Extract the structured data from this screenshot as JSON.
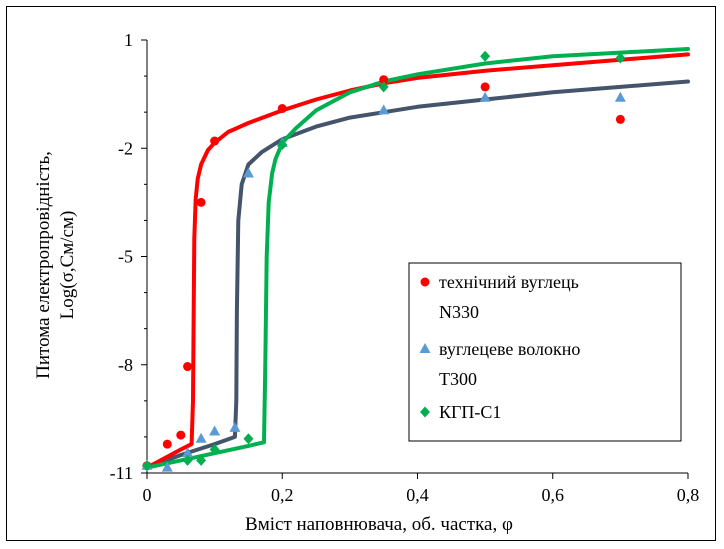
{
  "chart_data": {
    "type": "scatter",
    "title": "",
    "xlabel": "Вміст наповнювача, об. частка, φ",
    "ylabel_line1": "Питома електропровідність,",
    "ylabel_line2": "Log(σ,См/см)",
    "xlim": [
      0,
      0.8
    ],
    "ylim": [
      -11,
      1
    ],
    "x_ticks": [
      0,
      0.2,
      0.4,
      0.6,
      0.8
    ],
    "x_tick_labels": [
      "0",
      "0,2",
      "0,4",
      "0,6",
      "0,8"
    ],
    "y_ticks": [
      1,
      -2,
      -5,
      -8,
      -11
    ],
    "y_tick_labels": [
      "1",
      "-2",
      "-5",
      "-8",
      "-11"
    ],
    "grid": false,
    "legend_position": "center-right",
    "series": [
      {
        "name_line1": "технічний вуглець",
        "name_line2": "N330",
        "color": "#ff0000",
        "marker": "circle",
        "points": [
          [
            0,
            -10.8
          ],
          [
            0.03,
            -10.2
          ],
          [
            0.05,
            -9.95
          ],
          [
            0.06,
            -8.05
          ],
          [
            0.08,
            -3.5
          ],
          [
            0.1,
            -1.8
          ],
          [
            0.2,
            -0.9
          ],
          [
            0.35,
            -0.1
          ],
          [
            0.5,
            -0.3
          ],
          [
            0.7,
            -1.2
          ]
        ],
        "curve": [
          [
            0,
            -10.85
          ],
          [
            0.03,
            -10.55
          ],
          [
            0.05,
            -10.35
          ],
          [
            0.066,
            -10.2
          ],
          [
            0.068,
            -9.0
          ],
          [
            0.069,
            -6.5
          ],
          [
            0.07,
            -4.5
          ],
          [
            0.072,
            -3.4
          ],
          [
            0.075,
            -2.85
          ],
          [
            0.08,
            -2.45
          ],
          [
            0.09,
            -2.05
          ],
          [
            0.1,
            -1.85
          ],
          [
            0.12,
            -1.55
          ],
          [
            0.15,
            -1.3
          ],
          [
            0.2,
            -0.95
          ],
          [
            0.25,
            -0.65
          ],
          [
            0.3,
            -0.4
          ],
          [
            0.35,
            -0.2
          ],
          [
            0.4,
            -0.05
          ],
          [
            0.5,
            0.15
          ],
          [
            0.6,
            0.3
          ],
          [
            0.7,
            0.45
          ],
          [
            0.8,
            0.6
          ]
        ]
      },
      {
        "name_line1": "вуглецеве волокно",
        "name_line2": "Т300",
        "color": "#5b9bd5",
        "line_color": "#44546a",
        "marker": "triangle",
        "points": [
          [
            0,
            -10.8
          ],
          [
            0.03,
            -10.85
          ],
          [
            0.06,
            -10.45
          ],
          [
            0.08,
            -10.05
          ],
          [
            0.1,
            -9.85
          ],
          [
            0.13,
            -9.75
          ],
          [
            0.15,
            -2.7
          ],
          [
            0.2,
            -1.85
          ],
          [
            0.35,
            -0.95
          ],
          [
            0.5,
            -0.6
          ],
          [
            0.7,
            -0.6
          ]
        ],
        "curve": [
          [
            0,
            -10.85
          ],
          [
            0.05,
            -10.5
          ],
          [
            0.1,
            -10.2
          ],
          [
            0.13,
            -10.0
          ],
          [
            0.132,
            -9.0
          ],
          [
            0.133,
            -6.5
          ],
          [
            0.135,
            -4.0
          ],
          [
            0.14,
            -3.0
          ],
          [
            0.15,
            -2.45
          ],
          [
            0.17,
            -2.1
          ],
          [
            0.2,
            -1.75
          ],
          [
            0.25,
            -1.4
          ],
          [
            0.3,
            -1.15
          ],
          [
            0.4,
            -0.85
          ],
          [
            0.5,
            -0.65
          ],
          [
            0.6,
            -0.45
          ],
          [
            0.7,
            -0.3
          ],
          [
            0.8,
            -0.15
          ]
        ]
      },
      {
        "name_line1": "КГП-С1",
        "name_line2": "",
        "color": "#00b050",
        "marker": "diamond",
        "points": [
          [
            0,
            -10.8
          ],
          [
            0.06,
            -10.65
          ],
          [
            0.08,
            -10.65
          ],
          [
            0.1,
            -10.35
          ],
          [
            0.15,
            -10.05
          ],
          [
            0.2,
            -1.9
          ],
          [
            0.35,
            -0.3
          ],
          [
            0.5,
            0.55
          ],
          [
            0.7,
            0.5
          ]
        ],
        "curve": [
          [
            0,
            -10.85
          ],
          [
            0.05,
            -10.65
          ],
          [
            0.1,
            -10.45
          ],
          [
            0.15,
            -10.25
          ],
          [
            0.173,
            -10.15
          ],
          [
            0.175,
            -8.0
          ],
          [
            0.177,
            -5.0
          ],
          [
            0.18,
            -3.5
          ],
          [
            0.185,
            -2.7
          ],
          [
            0.19,
            -2.3
          ],
          [
            0.2,
            -1.85
          ],
          [
            0.22,
            -1.45
          ],
          [
            0.25,
            -0.95
          ],
          [
            0.3,
            -0.45
          ],
          [
            0.35,
            -0.15
          ],
          [
            0.4,
            0.05
          ],
          [
            0.5,
            0.35
          ],
          [
            0.6,
            0.55
          ],
          [
            0.7,
            0.65
          ],
          [
            0.8,
            0.75
          ]
        ]
      }
    ]
  }
}
